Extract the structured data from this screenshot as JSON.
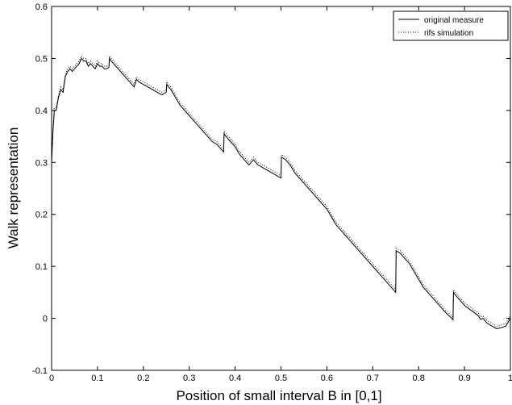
{
  "chart_data": {
    "type": "line",
    "title": "",
    "xlabel": "Position of small interval B in [0,1]",
    "ylabel": "Walk representation",
    "xlim": [
      0,
      1
    ],
    "ylim": [
      -0.1,
      0.6
    ],
    "x_ticks": [
      "0",
      "0.1",
      "0.2",
      "0.3",
      "0.4",
      "0.5",
      "0.6",
      "0.7",
      "0.8",
      "0.9",
      "1"
    ],
    "y_ticks": [
      "-0.1",
      "0",
      "0.1",
      "0.2",
      "0.3",
      "0.4",
      "0.5",
      "0.6"
    ],
    "grid": false,
    "legend_position": "top-right",
    "series": [
      {
        "name": "original measure",
        "style": "solid",
        "color": "#000000",
        "x": [
          0,
          0.003,
          0.006,
          0.01,
          0.015,
          0.02,
          0.025,
          0.03,
          0.035,
          0.04,
          0.045,
          0.05,
          0.055,
          0.06,
          0.065,
          0.07,
          0.075,
          0.08,
          0.085,
          0.09,
          0.095,
          0.1,
          0.105,
          0.11,
          0.115,
          0.12,
          0.125,
          0.126,
          0.13,
          0.14,
          0.15,
          0.16,
          0.17,
          0.18,
          0.185,
          0.19,
          0.2,
          0.21,
          0.22,
          0.23,
          0.24,
          0.25,
          0.251,
          0.255,
          0.26,
          0.27,
          0.28,
          0.29,
          0.3,
          0.31,
          0.32,
          0.33,
          0.34,
          0.35,
          0.36,
          0.37,
          0.375,
          0.376,
          0.38,
          0.39,
          0.4,
          0.41,
          0.42,
          0.43,
          0.435,
          0.44,
          0.45,
          0.46,
          0.47,
          0.48,
          0.49,
          0.5,
          0.501,
          0.505,
          0.51,
          0.52,
          0.53,
          0.54,
          0.55,
          0.56,
          0.57,
          0.58,
          0.59,
          0.6,
          0.61,
          0.62,
          0.63,
          0.64,
          0.65,
          0.66,
          0.67,
          0.68,
          0.69,
          0.7,
          0.71,
          0.72,
          0.73,
          0.74,
          0.75,
          0.751,
          0.755,
          0.76,
          0.77,
          0.78,
          0.79,
          0.8,
          0.81,
          0.82,
          0.83,
          0.84,
          0.85,
          0.86,
          0.87,
          0.875,
          0.876,
          0.88,
          0.89,
          0.9,
          0.91,
          0.92,
          0.93,
          0.935,
          0.94,
          0.95,
          0.96,
          0.97,
          0.98,
          0.99,
          1
        ],
        "y": [
          0.3,
          0.36,
          0.4,
          0.4,
          0.425,
          0.44,
          0.435,
          0.465,
          0.475,
          0.48,
          0.475,
          0.48,
          0.485,
          0.49,
          0.5,
          0.495,
          0.495,
          0.485,
          0.49,
          0.485,
          0.48,
          0.49,
          0.485,
          0.485,
          0.48,
          0.48,
          0.483,
          0.5,
          0.495,
          0.485,
          0.475,
          0.465,
          0.455,
          0.445,
          0.46,
          0.455,
          0.45,
          0.445,
          0.44,
          0.435,
          0.43,
          0.435,
          0.45,
          0.445,
          0.44,
          0.425,
          0.41,
          0.4,
          0.39,
          0.38,
          0.37,
          0.36,
          0.35,
          0.34,
          0.335,
          0.325,
          0.32,
          0.355,
          0.35,
          0.34,
          0.33,
          0.315,
          0.305,
          0.295,
          0.3,
          0.305,
          0.295,
          0.29,
          0.285,
          0.28,
          0.275,
          0.27,
          0.31,
          0.308,
          0.305,
          0.295,
          0.28,
          0.27,
          0.26,
          0.25,
          0.24,
          0.23,
          0.22,
          0.21,
          0.195,
          0.18,
          0.17,
          0.16,
          0.15,
          0.14,
          0.13,
          0.12,
          0.11,
          0.1,
          0.09,
          0.08,
          0.07,
          0.06,
          0.05,
          0.13,
          0.128,
          0.125,
          0.115,
          0.105,
          0.09,
          0.075,
          0.06,
          0.05,
          0.04,
          0.03,
          0.02,
          0.01,
          0.002,
          -0.003,
          0.05,
          0.045,
          0.035,
          0.025,
          0.018,
          0.012,
          0.005,
          -0.002,
          0.0,
          -0.01,
          -0.015,
          -0.02,
          -0.018,
          -0.015,
          0.0
        ]
      },
      {
        "name": "rifs simulation",
        "style": "dotted",
        "color": "#000000",
        "x": [
          0,
          0.003,
          0.006,
          0.01,
          0.015,
          0.02,
          0.025,
          0.03,
          0.035,
          0.04,
          0.045,
          0.05,
          0.055,
          0.06,
          0.065,
          0.07,
          0.075,
          0.08,
          0.085,
          0.09,
          0.095,
          0.1,
          0.105,
          0.11,
          0.115,
          0.12,
          0.125,
          0.126,
          0.13,
          0.14,
          0.15,
          0.16,
          0.17,
          0.18,
          0.185,
          0.19,
          0.2,
          0.21,
          0.22,
          0.23,
          0.24,
          0.25,
          0.251,
          0.255,
          0.26,
          0.27,
          0.28,
          0.29,
          0.3,
          0.31,
          0.32,
          0.33,
          0.34,
          0.35,
          0.36,
          0.37,
          0.375,
          0.376,
          0.38,
          0.39,
          0.4,
          0.41,
          0.42,
          0.43,
          0.435,
          0.44,
          0.45,
          0.46,
          0.47,
          0.48,
          0.49,
          0.5,
          0.501,
          0.505,
          0.51,
          0.52,
          0.53,
          0.54,
          0.55,
          0.56,
          0.57,
          0.58,
          0.59,
          0.6,
          0.61,
          0.62,
          0.63,
          0.64,
          0.65,
          0.66,
          0.67,
          0.68,
          0.69,
          0.7,
          0.71,
          0.72,
          0.73,
          0.74,
          0.75,
          0.751,
          0.755,
          0.76,
          0.77,
          0.78,
          0.79,
          0.8,
          0.81,
          0.82,
          0.83,
          0.84,
          0.85,
          0.86,
          0.87,
          0.875,
          0.876,
          0.88,
          0.89,
          0.9,
          0.91,
          0.92,
          0.93,
          0.935,
          0.94,
          0.95,
          0.96,
          0.97,
          0.98,
          0.99,
          1
        ],
        "y": [
          0.305,
          0.365,
          0.405,
          0.405,
          0.43,
          0.445,
          0.44,
          0.47,
          0.48,
          0.485,
          0.48,
          0.485,
          0.49,
          0.495,
          0.505,
          0.5,
          0.5,
          0.49,
          0.495,
          0.49,
          0.485,
          0.495,
          0.49,
          0.49,
          0.485,
          0.485,
          0.488,
          0.505,
          0.5,
          0.49,
          0.48,
          0.47,
          0.46,
          0.45,
          0.465,
          0.46,
          0.455,
          0.45,
          0.445,
          0.44,
          0.435,
          0.44,
          0.455,
          0.45,
          0.445,
          0.43,
          0.415,
          0.405,
          0.395,
          0.385,
          0.375,
          0.365,
          0.355,
          0.345,
          0.34,
          0.33,
          0.325,
          0.36,
          0.355,
          0.345,
          0.335,
          0.32,
          0.31,
          0.3,
          0.305,
          0.31,
          0.3,
          0.295,
          0.29,
          0.285,
          0.28,
          0.275,
          0.315,
          0.313,
          0.31,
          0.3,
          0.285,
          0.275,
          0.265,
          0.255,
          0.245,
          0.235,
          0.225,
          0.215,
          0.2,
          0.185,
          0.175,
          0.165,
          0.155,
          0.145,
          0.135,
          0.125,
          0.115,
          0.105,
          0.095,
          0.085,
          0.075,
          0.065,
          0.055,
          0.135,
          0.133,
          0.13,
          0.12,
          0.11,
          0.095,
          0.08,
          0.065,
          0.055,
          0.045,
          0.035,
          0.025,
          0.015,
          0.007,
          0.002,
          0.055,
          0.05,
          0.04,
          0.03,
          0.023,
          0.017,
          0.01,
          0.003,
          0.005,
          -0.005,
          -0.01,
          -0.015,
          -0.013,
          -0.01,
          0.005
        ]
      }
    ]
  }
}
